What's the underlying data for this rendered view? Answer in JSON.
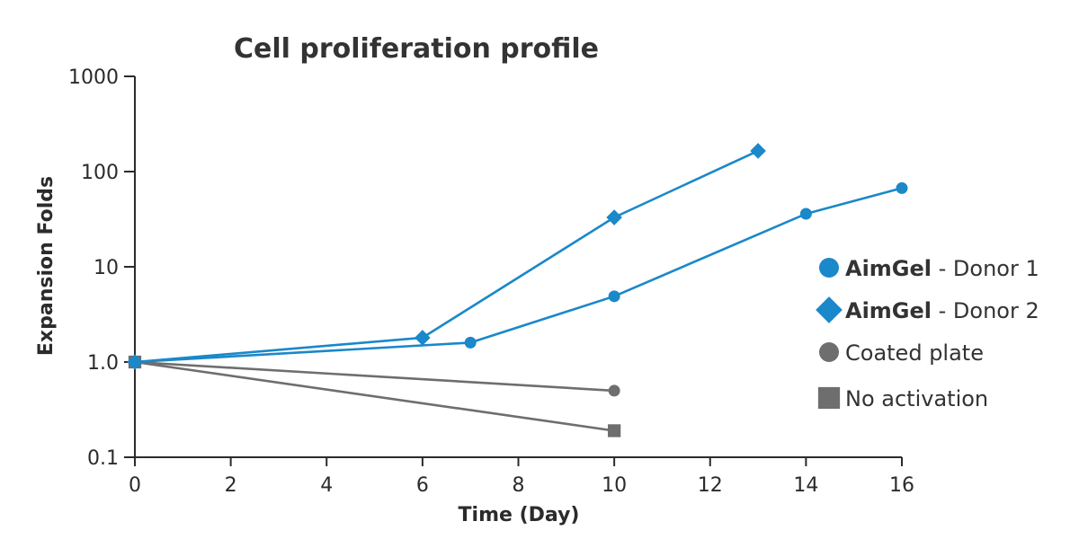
{
  "chart_data": {
    "type": "line",
    "title": "Cell proliferation profile",
    "xlabel": "Time (Day)",
    "ylabel": "Expansion Folds",
    "xlim": [
      0,
      16
    ],
    "ylim": [
      0.1,
      1000
    ],
    "yscale": "log",
    "grid": false,
    "legend_position": "right",
    "x_ticks": [
      0,
      2,
      4,
      6,
      8,
      10,
      12,
      14,
      16
    ],
    "x_tick_labels": [
      "0",
      "2",
      "4",
      "6",
      "8",
      "10",
      "12",
      "14",
      "16"
    ],
    "y_ticks": [
      0.1,
      1,
      10,
      100,
      1000
    ],
    "y_tick_labels": [
      "0.1",
      "1.0",
      "10",
      "100",
      "1000"
    ],
    "series": [
      {
        "name": "AimGel - Donor 1",
        "legend_bold": "AimGel",
        "legend_rest": " - Donor 1",
        "marker": "circle",
        "color": "#1a88c9",
        "x": [
          0,
          7,
          10,
          14,
          16
        ],
        "y": [
          1.0,
          1.6,
          4.9,
          36,
          67
        ]
      },
      {
        "name": "AimGel - Donor 2",
        "legend_bold": "AimGel",
        "legend_rest": " - Donor 2",
        "marker": "diamond",
        "color": "#1a88c9",
        "x": [
          0,
          6,
          10,
          13
        ],
        "y": [
          1.0,
          1.8,
          33,
          165
        ]
      },
      {
        "name": "Coated plate",
        "legend_bold": "",
        "legend_rest": "Coated plate",
        "marker": "circle",
        "color": "#6e6e6e",
        "x": [
          0,
          10
        ],
        "y": [
          1.0,
          0.5
        ]
      },
      {
        "name": "No activation",
        "legend_bold": "",
        "legend_rest": "No activation",
        "marker": "square",
        "color": "#6e6e6e",
        "x": [
          0,
          10
        ],
        "y": [
          1.0,
          0.19
        ]
      }
    ]
  }
}
